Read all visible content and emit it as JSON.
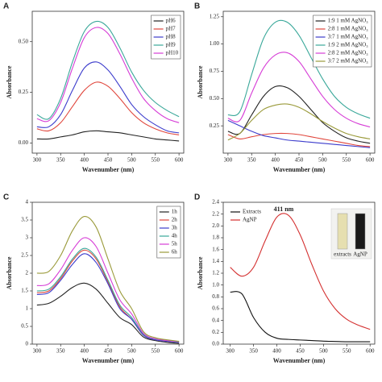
{
  "chart_data": [
    {
      "type": "line",
      "panel": "A",
      "xlabel": "Wavenumber (nm)",
      "ylabel": "Absorbance",
      "legend": "upper right",
      "x": [
        300,
        325,
        350,
        375,
        400,
        425,
        450,
        475,
        500,
        525,
        550,
        575,
        600
      ],
      "xlim": [
        290,
        610
      ],
      "xticks": [
        300,
        350,
        400,
        450,
        500,
        550,
        600
      ],
      "ylim": [
        -0.05,
        0.65
      ],
      "yticks": [
        {
          "value": 0,
          "label": "0.00"
        },
        {
          "value": 0.25,
          "label": "0.25"
        },
        {
          "value": 0.5,
          "label": "0.50"
        }
      ],
      "series": [
        {
          "name": "pH6",
          "color": "#222222",
          "values": [
            0.02,
            0.02,
            0.03,
            0.04,
            0.055,
            0.06,
            0.055,
            0.05,
            0.04,
            0.03,
            0.02,
            0.015,
            0.01
          ]
        },
        {
          "name": "pH7",
          "color": "#e0463c",
          "values": [
            0.07,
            0.06,
            0.1,
            0.18,
            0.26,
            0.3,
            0.28,
            0.22,
            0.15,
            0.1,
            0.07,
            0.05,
            0.04
          ]
        },
        {
          "name": "pH8",
          "color": "#3c3ccc",
          "values": [
            0.08,
            0.08,
            0.14,
            0.26,
            0.37,
            0.4,
            0.36,
            0.28,
            0.19,
            0.13,
            0.09,
            0.06,
            0.05
          ]
        },
        {
          "name": "pH9",
          "color": "#3aa89a",
          "values": [
            0.14,
            0.12,
            0.22,
            0.4,
            0.55,
            0.6,
            0.57,
            0.47,
            0.35,
            0.26,
            0.2,
            0.16,
            0.13
          ]
        },
        {
          "name": "pH10",
          "color": "#d63cd6",
          "values": [
            0.12,
            0.11,
            0.2,
            0.37,
            0.52,
            0.57,
            0.54,
            0.44,
            0.32,
            0.22,
            0.16,
            0.12,
            0.1
          ]
        }
      ]
    },
    {
      "type": "line",
      "panel": "B",
      "xlabel": "Wavenumber (nm)",
      "ylabel": "Absorbance",
      "legend": "upper right",
      "x": [
        300,
        325,
        350,
        375,
        400,
        425,
        450,
        475,
        500,
        525,
        550,
        575,
        600
      ],
      "xlim": [
        290,
        610
      ],
      "xticks": [
        300,
        350,
        400,
        450,
        500,
        550,
        600
      ],
      "ylim": [
        0,
        1.3
      ],
      "yticks": [
        {
          "value": 0.25,
          "label": "0.25"
        },
        {
          "value": 0.5,
          "label": "0.50"
        },
        {
          "value": 0.75,
          "label": "0.75"
        },
        {
          "value": 1,
          "label": "1.00"
        },
        {
          "value": 1.25,
          "label": "1.25"
        }
      ],
      "series": [
        {
          "name": "1:9 1 mM AgNO₃",
          "color": "#222222",
          "values": [
            0.2,
            0.18,
            0.35,
            0.52,
            0.61,
            0.6,
            0.52,
            0.4,
            0.28,
            0.2,
            0.14,
            0.11,
            0.09
          ]
        },
        {
          "name": "2:8 1 mM AgNO₃",
          "color": "#e0463c",
          "values": [
            0.17,
            0.13,
            0.15,
            0.17,
            0.18,
            0.18,
            0.17,
            0.15,
            0.13,
            0.11,
            0.09,
            0.07,
            0.06
          ]
        },
        {
          "name": "3:7 1 mM AgNO₃",
          "color": "#3c3ccc",
          "values": [
            0.3,
            0.25,
            0.2,
            0.16,
            0.14,
            0.12,
            0.11,
            0.1,
            0.09,
            0.08,
            0.07,
            0.06,
            0.05
          ]
        },
        {
          "name": "1:9 2 mM AgNO₃",
          "color": "#3aa89a",
          "values": [
            0.35,
            0.38,
            0.72,
            1.05,
            1.2,
            1.2,
            1.08,
            0.88,
            0.68,
            0.52,
            0.42,
            0.36,
            0.32
          ]
        },
        {
          "name": "2:8 2 mM AgNO₃",
          "color": "#d63cd6",
          "values": [
            0.32,
            0.3,
            0.55,
            0.78,
            0.9,
            0.92,
            0.84,
            0.68,
            0.52,
            0.4,
            0.32,
            0.27,
            0.24
          ]
        },
        {
          "name": "3:7 2 mM AgNO₃",
          "color": "#9a9a3a",
          "values": [
            0.12,
            0.18,
            0.3,
            0.4,
            0.44,
            0.45,
            0.42,
            0.36,
            0.29,
            0.23,
            0.18,
            0.15,
            0.13
          ]
        }
      ]
    },
    {
      "type": "line",
      "panel": "C",
      "xlabel": "Wavenumber (nm)",
      "ylabel": "Absorbance",
      "legend": "upper right",
      "x": [
        300,
        325,
        350,
        375,
        400,
        425,
        450,
        475,
        500,
        525,
        550,
        575,
        600
      ],
      "xlim": [
        290,
        610
      ],
      "xticks": [
        300,
        350,
        400,
        450,
        500,
        550,
        600
      ],
      "ylim": [
        0,
        4
      ],
      "yticks": [
        0,
        0.5,
        1,
        1.5,
        2,
        2.5,
        3,
        3.5,
        4
      ],
      "series": [
        {
          "name": "1h",
          "color": "#222222",
          "values": [
            1.1,
            1.15,
            1.35,
            1.6,
            1.72,
            1.55,
            1.15,
            0.75,
            0.55,
            0.2,
            0.1,
            0.05,
            0.02
          ]
        },
        {
          "name": "2h",
          "color": "#e0463c",
          "values": [
            1.45,
            1.5,
            1.85,
            2.35,
            2.65,
            2.4,
            1.75,
            1.05,
            0.7,
            0.25,
            0.12,
            0.08,
            0.05
          ]
        },
        {
          "name": "3h",
          "color": "#3c3ccc",
          "values": [
            1.4,
            1.45,
            1.8,
            2.25,
            2.55,
            2.3,
            1.7,
            1.0,
            0.7,
            0.25,
            0.12,
            0.08,
            0.05
          ]
        },
        {
          "name": "4h",
          "color": "#3aa89a",
          "values": [
            1.5,
            1.55,
            1.9,
            2.4,
            2.7,
            2.45,
            1.8,
            1.1,
            0.75,
            0.28,
            0.14,
            0.1,
            0.06
          ]
        },
        {
          "name": "5h",
          "color": "#d63cd6",
          "values": [
            1.65,
            1.7,
            2.1,
            2.65,
            3.0,
            2.75,
            2.0,
            1.25,
            0.85,
            0.3,
            0.15,
            0.1,
            0.07
          ]
        },
        {
          "name": "6h",
          "color": "#9a9a3a",
          "values": [
            2.0,
            2.05,
            2.5,
            3.2,
            3.6,
            3.3,
            2.4,
            1.5,
            1.0,
            0.35,
            0.18,
            0.12,
            0.08
          ]
        }
      ]
    },
    {
      "type": "line",
      "panel": "D",
      "xlabel": "Wavenumber (nm)",
      "ylabel": "Absorbance",
      "legend": "upper left",
      "annotation": "411 nm",
      "inset_labels": [
        "extracts",
        "AgNP"
      ],
      "x": [
        300,
        325,
        350,
        375,
        400,
        425,
        450,
        475,
        500,
        525,
        550,
        575,
        600
      ],
      "xlim": [
        285,
        610
      ],
      "xticks": [
        300,
        350,
        400,
        450,
        500,
        550,
        600
      ],
      "ylim": [
        0,
        2.4
      ],
      "yticks": [
        {
          "value": 0,
          "label": "0.0"
        },
        {
          "value": 0.2,
          "label": "0.2"
        },
        {
          "value": 0.4,
          "label": "0.4"
        },
        {
          "value": 0.6,
          "label": "0.6"
        },
        {
          "value": 0.8,
          "label": "0.8"
        },
        {
          "value": 1,
          "label": "1.0"
        },
        {
          "value": 1.2,
          "label": "1.2"
        },
        {
          "value": 1.4,
          "label": "1.4"
        },
        {
          "value": 1.6,
          "label": "1.6"
        },
        {
          "value": 1.8,
          "label": "1.8"
        },
        {
          "value": 2,
          "label": "2.0"
        },
        {
          "value": 2.2,
          "label": "2.2"
        },
        {
          "value": 2.4,
          "label": "2.4"
        }
      ],
      "series": [
        {
          "name": "Extracts",
          "color": "#111111",
          "values": [
            0.88,
            0.85,
            0.45,
            0.2,
            0.1,
            0.08,
            0.07,
            0.06,
            0.05,
            0.045,
            0.04,
            0.04,
            0.04
          ]
        },
        {
          "name": "AgNP",
          "color": "#d43030",
          "values": [
            1.3,
            1.15,
            1.3,
            1.75,
            2.15,
            2.18,
            1.85,
            1.35,
            0.9,
            0.6,
            0.42,
            0.32,
            0.25
          ]
        }
      ]
    }
  ]
}
